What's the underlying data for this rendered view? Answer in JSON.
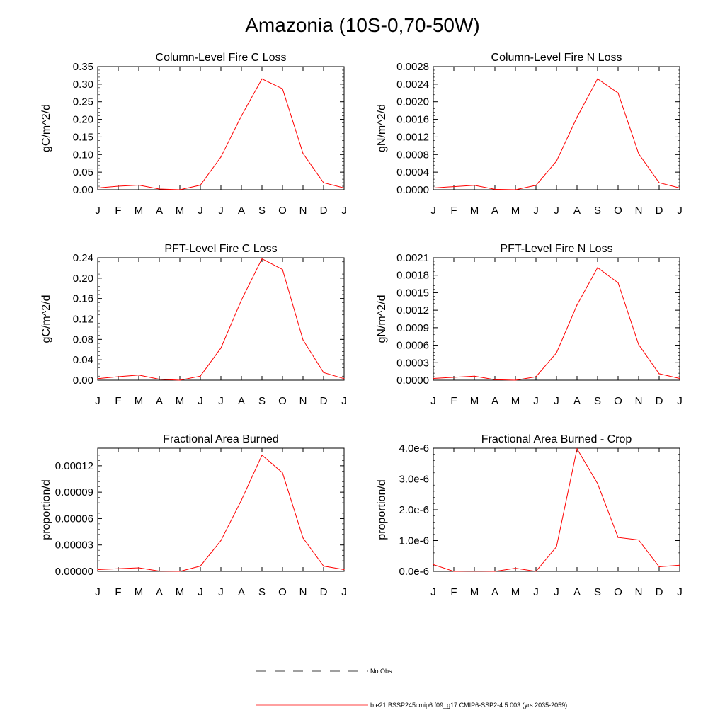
{
  "title": "Amazonia (10S-0,70-50W)",
  "months": [
    "J",
    "F",
    "M",
    "A",
    "M",
    "J",
    "J",
    "A",
    "S",
    "O",
    "N",
    "D",
    "J"
  ],
  "legend": {
    "obs_label": "No Obs",
    "model_label": "b.e21.BSSP245cmip6.f09_g17.CMIP6-SSP2-4.5.003 (yrs 2035-2059)"
  },
  "colors": {
    "model_line": "#ff0000",
    "axis": "#000000",
    "obs_line": "#000000"
  },
  "chart_data": [
    {
      "type": "line",
      "title": "Column-Level Fire C Loss",
      "ylabel": "gC/m^2/d",
      "ylim": [
        0,
        0.35
      ],
      "yticks": [
        "0.00",
        "0.05",
        "0.10",
        "0.15",
        "0.20",
        "0.25",
        "0.30",
        "0.35"
      ],
      "series": [
        {
          "name": "b.e21.BSSP245cmip6.f09_g17.CMIP6-SSP2-4.5.003 (yrs 2035-2059)",
          "values": [
            0.005,
            0.01,
            0.013,
            0.002,
            0.0,
            0.013,
            0.093,
            0.21,
            0.315,
            0.287,
            0.103,
            0.02,
            0.005
          ]
        }
      ]
    },
    {
      "type": "line",
      "title": "Column-Level Fire N Loss",
      "ylabel": "gN/m^2/d",
      "ylim": [
        0,
        0.0028
      ],
      "yticks": [
        "0.0000",
        "0.0004",
        "0.0008",
        "0.0012",
        "0.0016",
        "0.0020",
        "0.0024",
        "0.0028"
      ],
      "series": [
        {
          "name": "b.e21.BSSP245cmip6.f09_g17.CMIP6-SSP2-4.5.003 (yrs 2035-2059)",
          "values": [
            4e-05,
            7e-05,
            0.0001,
            1e-05,
            0.0,
            0.0001,
            0.00065,
            0.00165,
            0.00252,
            0.0022,
            0.00082,
            0.00016,
            4e-05
          ]
        }
      ]
    },
    {
      "type": "line",
      "title": "PFT-Level Fire C Loss",
      "ylabel": "gC/m^2/d",
      "ylim": [
        0,
        0.24
      ],
      "yticks": [
        "0.00",
        "0.04",
        "0.08",
        "0.12",
        "0.16",
        "0.20",
        "0.24"
      ],
      "series": [
        {
          "name": "b.e21.BSSP245cmip6.f09_g17.CMIP6-SSP2-4.5.003 (yrs 2035-2059)",
          "values": [
            0.003,
            0.007,
            0.01,
            0.002,
            0.0,
            0.008,
            0.063,
            0.157,
            0.238,
            0.217,
            0.079,
            0.015,
            0.003
          ]
        }
      ]
    },
    {
      "type": "line",
      "title": "PFT-Level Fire N Loss",
      "ylabel": "gN/m^2/d",
      "ylim": [
        0,
        0.0021
      ],
      "yticks": [
        "0.0000",
        "0.0003",
        "0.0006",
        "0.0009",
        "0.0012",
        "0.0015",
        "0.0018",
        "0.0021"
      ],
      "series": [
        {
          "name": "b.e21.BSSP245cmip6.f09_g17.CMIP6-SSP2-4.5.003 (yrs 2035-2059)",
          "values": [
            3e-05,
            5e-05,
            7e-05,
            1e-05,
            0.0,
            6e-05,
            0.00047,
            0.00129,
            0.00193,
            0.00167,
            0.00061,
            0.00011,
            3e-05
          ]
        }
      ]
    },
    {
      "type": "line",
      "title": "Fractional Area Burned",
      "ylabel": "proportion/d",
      "ylim": [
        0,
        0.00014
      ],
      "yticks": [
        "0.00000",
        "0.00003",
        "0.00006",
        "0.00009",
        "0.00012"
      ],
      "ytick_values": [
        0,
        3e-05,
        6e-05,
        9e-05,
        0.00012
      ],
      "series": [
        {
          "name": "b.e21.BSSP245cmip6.f09_g17.CMIP6-SSP2-4.5.003 (yrs 2035-2059)",
          "values": [
            2e-06,
            3e-06,
            4e-06,
            3e-07,
            0.0,
            6e-06,
            3.5e-05,
            8.1e-05,
            0.000132,
            0.000112,
            3.8e-05,
            6e-06,
            2e-06
          ]
        }
      ]
    },
    {
      "type": "line",
      "title": "Fractional Area Burned - Crop",
      "ylabel": "proportion/d",
      "ylim": [
        0,
        4e-06
      ],
      "yticks": [
        "0.0e-6",
        "1.0e-6",
        "2.0e-6",
        "3.0e-6",
        "4.0e-6"
      ],
      "series": [
        {
          "name": "b.e21.BSSP245cmip6.f09_g17.CMIP6-SSP2-4.5.003 (yrs 2035-2059)",
          "values": [
            2.2e-07,
            0.0,
            1e-08,
            0.0,
            1e-07,
            0.0,
            8e-07,
            3.98e-06,
            2.85e-06,
            1.1e-06,
            1.02e-06,
            1.5e-07,
            2e-07
          ]
        }
      ]
    }
  ]
}
